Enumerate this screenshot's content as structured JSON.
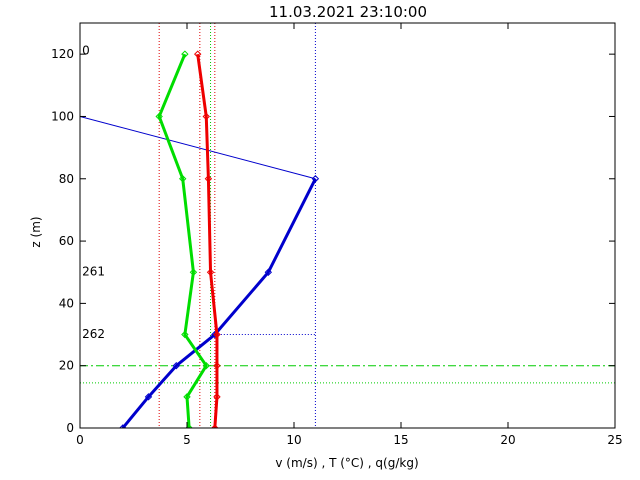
{
  "chart_data": {
    "type": "line",
    "title": "11.03.2021 23:10:00",
    "xlabel": "v (m/s) , T (°C) , q(g/kg)",
    "ylabel": "z (m)",
    "xlim": [
      0,
      25
    ],
    "ylim": [
      0,
      130
    ],
    "xticks": [
      0,
      5,
      10,
      15,
      20,
      25
    ],
    "yticks": [
      0,
      20,
      40,
      60,
      80,
      100,
      120
    ],
    "grid": false,
    "series": [
      {
        "id": "wind",
        "color": "#0000cc",
        "points": [
          [
            2.0,
            0
          ],
          [
            3.2,
            10
          ],
          [
            4.5,
            20
          ],
          [
            6.3,
            30
          ],
          [
            8.8,
            50
          ],
          [
            11.0,
            80
          ]
        ]
      },
      {
        "id": "temperature",
        "color": "#ee0000",
        "points": [
          [
            6.3,
            0
          ],
          [
            6.4,
            10
          ],
          [
            6.4,
            20
          ],
          [
            6.4,
            30
          ],
          [
            6.1,
            50
          ],
          [
            6.0,
            80
          ],
          [
            5.9,
            100
          ],
          [
            5.5,
            120
          ]
        ]
      },
      {
        "id": "humidity",
        "color": "#00dd00",
        "points": [
          [
            5.1,
            0
          ],
          [
            5.0,
            10
          ],
          [
            5.9,
            20
          ],
          [
            4.9,
            30
          ],
          [
            5.3,
            50
          ],
          [
            4.8,
            80
          ],
          [
            3.7,
            100
          ],
          [
            4.9,
            120
          ]
        ]
      }
    ],
    "wind_direction_line": {
      "color": "#0000cc",
      "points": [
        [
          11.0,
          80
        ],
        [
          0,
          100
        ]
      ]
    },
    "direction_labels": [
      {
        "text": "0",
        "x": 0.1,
        "y": 121
      },
      {
        "text": "261",
        "x": 0.1,
        "y": 50
      },
      {
        "text": "262",
        "x": 0.1,
        "y": 30
      }
    ],
    "reference_lines": [
      {
        "orientation": "vertical",
        "x": 3.7,
        "color": "#dd0000",
        "style": "dotted"
      },
      {
        "orientation": "vertical",
        "x": 5.6,
        "color": "#dd0000",
        "style": "dotted"
      },
      {
        "orientation": "vertical",
        "x": 6.3,
        "color": "#dd0000",
        "style": "dotted"
      },
      {
        "orientation": "vertical",
        "x": 6.1,
        "color": "#00cc00",
        "style": "dotted"
      },
      {
        "orientation": "vertical",
        "x": 11.0,
        "color": "#0000cc",
        "style": "dotted"
      },
      {
        "orientation": "horizontal",
        "y": 30,
        "x_from": 6.3,
        "x_to": 11.0,
        "color": "#0000cc",
        "style": "dotted"
      },
      {
        "orientation": "horizontal",
        "y": 20,
        "color": "#00cc00",
        "style": "dashdot"
      },
      {
        "orientation": "horizontal",
        "y": 14.5,
        "color": "#00cc00",
        "style": "dotted"
      }
    ]
  }
}
